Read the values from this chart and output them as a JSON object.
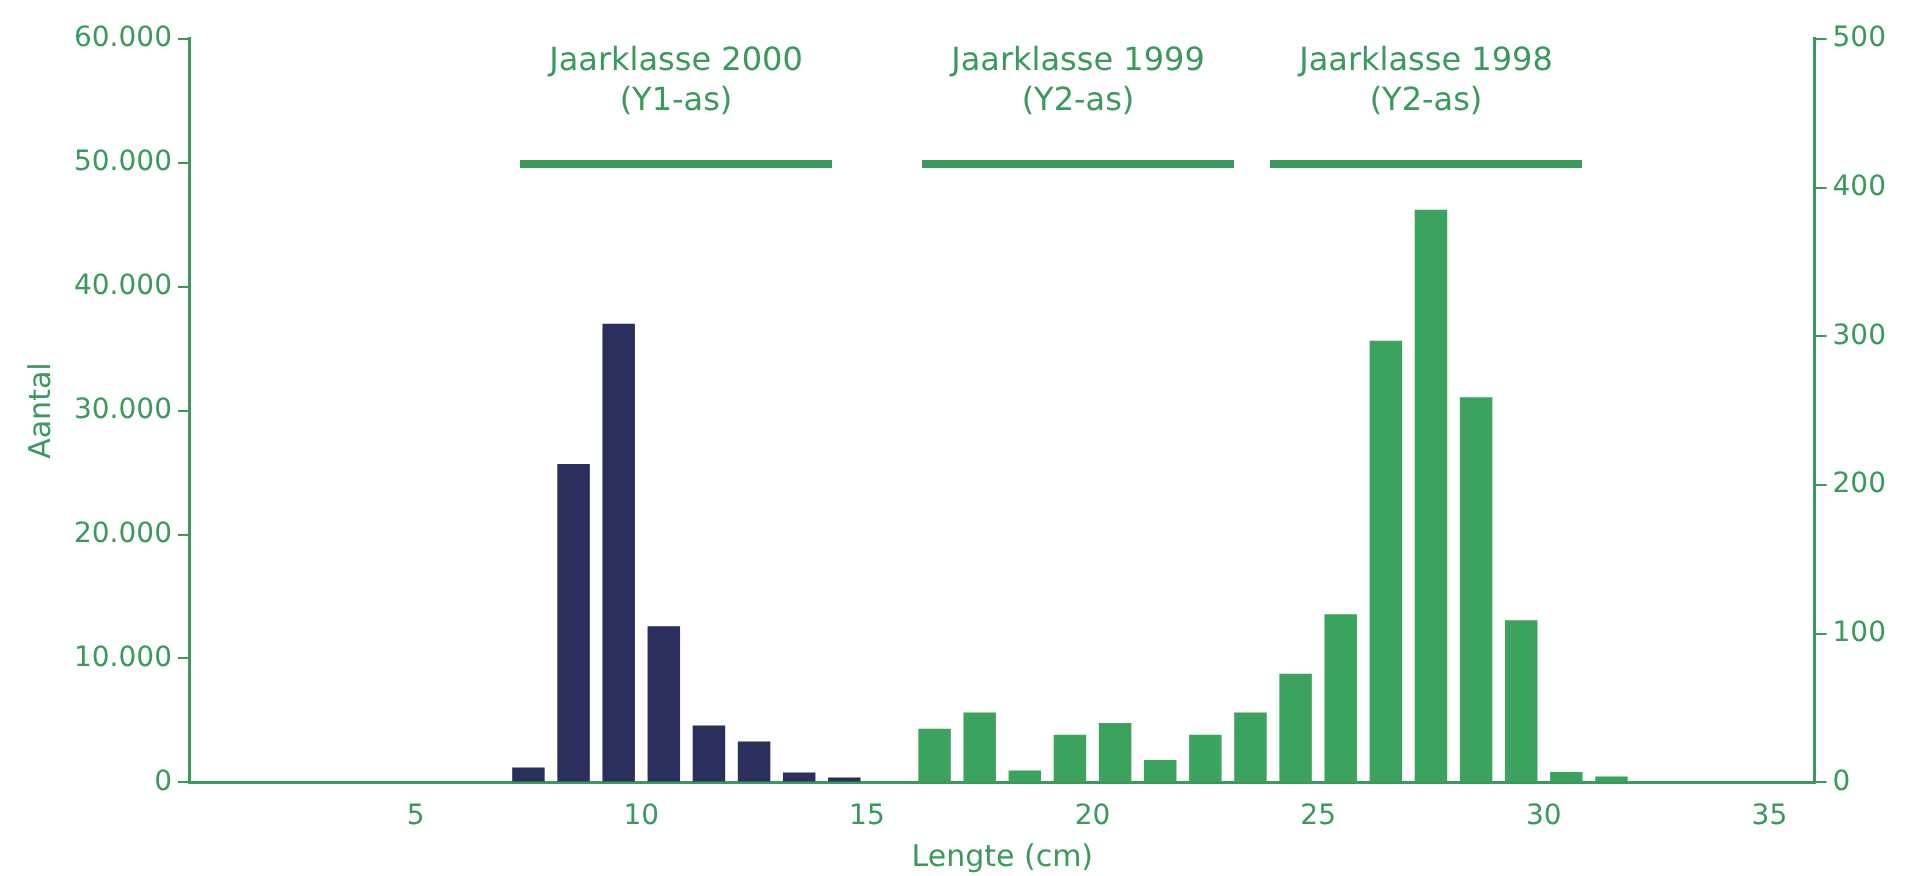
{
  "chart_data": {
    "type": "bar",
    "xlabel": "Lengte (cm)",
    "ylabel": "Aantal",
    "xlim": [
      0,
      36
    ],
    "xticks": [
      5,
      10,
      15,
      20,
      25,
      30,
      35
    ],
    "ylim": [
      0,
      60000
    ],
    "yticks": [
      {
        "value": 0,
        "label": "0"
      },
      {
        "value": 10000,
        "label": "10.000"
      },
      {
        "value": 20000,
        "label": "20.000"
      },
      {
        "value": 30000,
        "label": "30.000"
      },
      {
        "value": 40000,
        "label": "40.000"
      },
      {
        "value": 50000,
        "label": "50.000"
      },
      {
        "value": 60000,
        "label": "60.000"
      }
    ],
    "y2lim": [
      0,
      500
    ],
    "y2ticks": [
      0,
      100,
      200,
      300,
      400,
      500
    ],
    "grid": false,
    "legend": false,
    "series": [
      {
        "color": "#2b2f5e",
        "x": [
          7.5,
          8.5,
          9.5,
          10.5,
          11.5,
          12.5,
          13.5,
          14.5
        ],
        "values": [
          1200,
          25700,
          37000,
          12600,
          4600,
          3300,
          800,
          400
        ]
      },
      {
        "color": "#3ca35e",
        "axis": "y2",
        "x": [
          16.5,
          17.5,
          18.5,
          19.5,
          20.5,
          21.5,
          22.5,
          23.5,
          24.5,
          25.5,
          26.5,
          27.5,
          28.5,
          29.5,
          30.5,
          31.5
        ],
        "values": [
          36,
          47,
          8,
          32,
          40,
          15,
          32,
          47,
          73,
          113,
          297,
          385,
          259,
          109,
          7,
          4
        ]
      }
    ],
    "annotations": [
      "Jaarklasse 2000 (Y1-as)",
      "Jaarklasse 1999 (Y2-as)",
      "Jaarklasse 1998 (Y2-as)"
    ]
  }
}
